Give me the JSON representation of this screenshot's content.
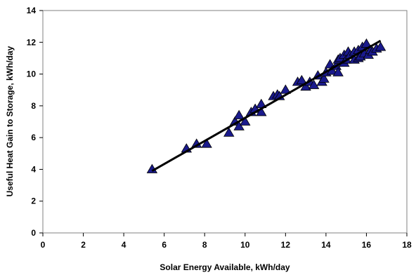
{
  "chart_data": {
    "type": "scatter",
    "title": "",
    "xlabel": "Solar Energy Available, kWh/day",
    "ylabel": "Useful Heat Gain to Storage, kWh/day",
    "xlim": [
      0,
      18
    ],
    "ylim": [
      0,
      14
    ],
    "x_ticks": [
      "0",
      "2",
      "4",
      "6",
      "8",
      "10",
      "12",
      "14",
      "16",
      "18"
    ],
    "y_ticks": [
      "0",
      "2",
      "4",
      "6",
      "8",
      "10",
      "12",
      "14"
    ],
    "grid": false,
    "legend": "none",
    "marker": "triangle",
    "marker_color": "#1a1a8c",
    "trendline": {
      "x": [
        5.4,
        16.7
      ],
      "y": [
        3.9,
        12.1
      ],
      "color": "#000000"
    },
    "series": [
      {
        "points": [
          [
            5.4,
            4.0
          ],
          [
            7.1,
            5.3
          ],
          [
            7.6,
            5.6
          ],
          [
            8.1,
            5.6
          ],
          [
            9.2,
            6.3
          ],
          [
            9.5,
            7.0
          ],
          [
            9.7,
            6.7
          ],
          [
            9.7,
            7.4
          ],
          [
            10.0,
            7.0
          ],
          [
            10.3,
            7.6
          ],
          [
            10.5,
            7.8
          ],
          [
            10.8,
            7.6
          ],
          [
            10.8,
            8.1
          ],
          [
            11.4,
            8.6
          ],
          [
            11.6,
            8.7
          ],
          [
            11.7,
            8.6
          ],
          [
            12.0,
            9.0
          ],
          [
            12.6,
            9.5
          ],
          [
            12.8,
            9.6
          ],
          [
            13.0,
            9.2
          ],
          [
            13.2,
            9.5
          ],
          [
            13.4,
            9.3
          ],
          [
            13.6,
            9.9
          ],
          [
            13.8,
            9.5
          ],
          [
            13.9,
            9.7
          ],
          [
            14.0,
            10.1
          ],
          [
            14.2,
            10.6
          ],
          [
            14.3,
            10.2
          ],
          [
            14.5,
            10.5
          ],
          [
            14.6,
            10.9
          ],
          [
            14.6,
            10.1
          ],
          [
            14.7,
            11.0
          ],
          [
            14.9,
            10.7
          ],
          [
            14.9,
            11.2
          ],
          [
            15.0,
            10.9
          ],
          [
            15.1,
            11.4
          ],
          [
            15.2,
            11.2
          ],
          [
            15.4,
            10.9
          ],
          [
            15.4,
            11.4
          ],
          [
            15.6,
            11.0
          ],
          [
            15.6,
            11.5
          ],
          [
            15.7,
            11.1
          ],
          [
            15.8,
            11.7
          ],
          [
            15.9,
            11.3
          ],
          [
            16.0,
            11.9
          ],
          [
            16.1,
            11.2
          ],
          [
            16.2,
            11.5
          ],
          [
            16.3,
            11.4
          ],
          [
            16.5,
            11.6
          ],
          [
            16.7,
            11.7
          ]
        ]
      }
    ]
  }
}
